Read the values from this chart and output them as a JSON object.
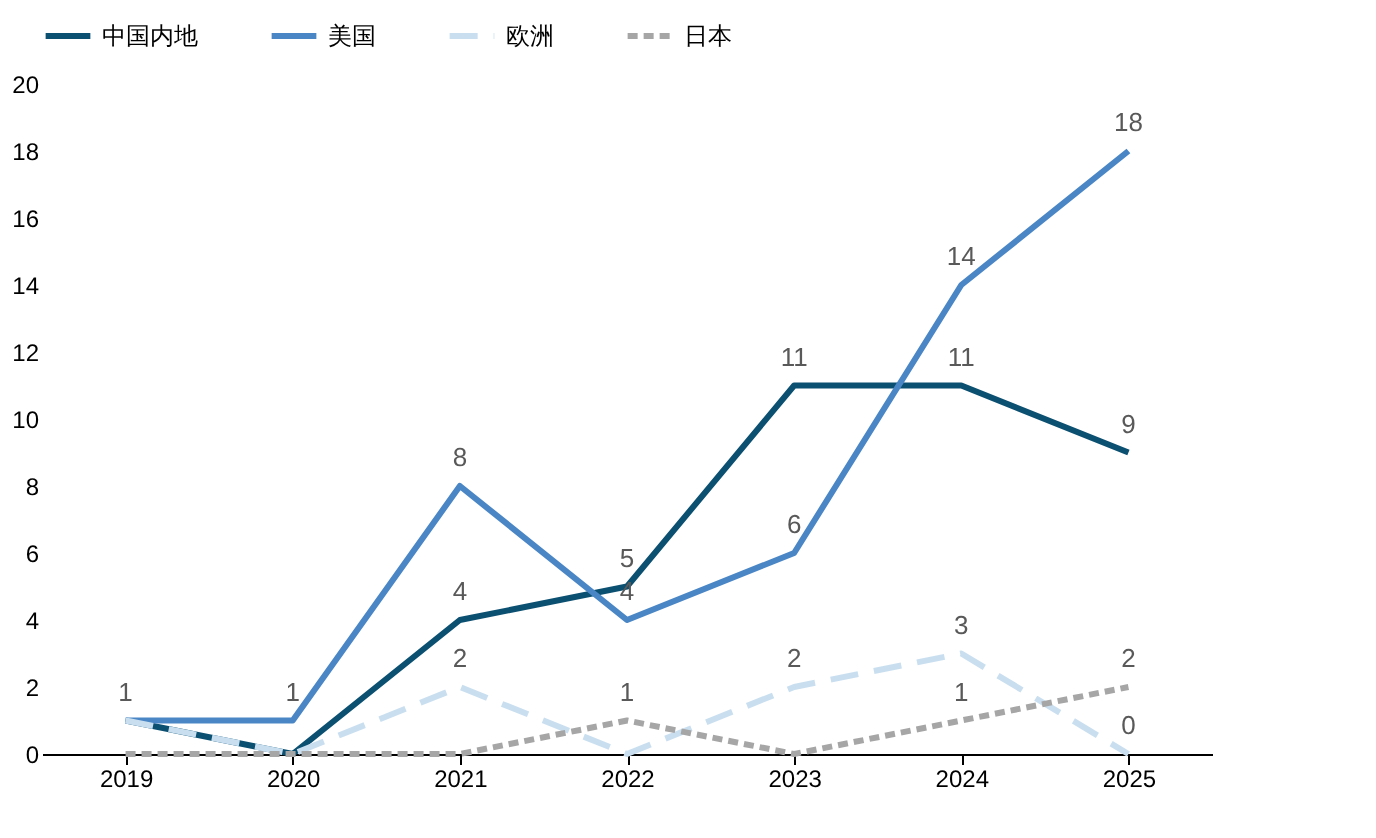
{
  "chart_data": {
    "type": "line",
    "categories": [
      "2019",
      "2020",
      "2021",
      "2022",
      "2023",
      "2024",
      "2025"
    ],
    "series": [
      {
        "name": "中国内地",
        "color": "#0b4f71",
        "line_style": "solid",
        "values": [
          1,
          0,
          4,
          5,
          11,
          11,
          9
        ],
        "value_labels": [
          "1",
          null,
          "4",
          "5",
          "11",
          "11",
          "9"
        ]
      },
      {
        "name": "美国",
        "color": "#4a86c5",
        "line_style": "solid",
        "values": [
          1,
          1,
          8,
          4,
          6,
          14,
          18
        ],
        "value_labels": [
          null,
          "1",
          "8",
          "4",
          "6",
          "14",
          "18"
        ]
      },
      {
        "name": "欧洲",
        "color": "#c9dff0",
        "line_style": "dashed",
        "values": [
          1,
          0,
          2,
          0,
          2,
          3,
          0
        ],
        "value_labels": [
          null,
          null,
          "2",
          null,
          "2",
          "3",
          "0"
        ]
      },
      {
        "name": "日本",
        "color": "#a6a6a6",
        "line_style": "dotted",
        "values": [
          0,
          0,
          0,
          1,
          0,
          1,
          2
        ],
        "value_labels": [
          null,
          null,
          null,
          "1",
          null,
          "1",
          "2"
        ]
      }
    ],
    "ylim": [
      0,
      20
    ],
    "yticks": [
      0,
      2,
      4,
      6,
      8,
      10,
      12,
      14,
      16,
      18,
      20
    ],
    "grid": false,
    "legend": "top",
    "marker": "none"
  }
}
